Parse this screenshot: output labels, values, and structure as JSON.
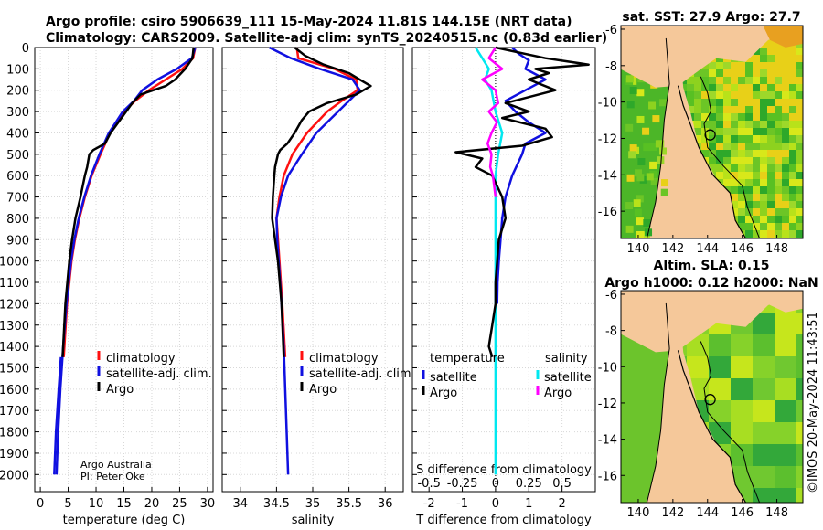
{
  "header": {
    "line1": "Argo profile: csiro 5906639_111 15-May-2024 11.81S 144.15E (NRT data)",
    "line2": "Climatology: CARS2009. Satellite-adj clim: synTS_20240515.nc (0.83d earlier)"
  },
  "credit": {
    "org": "Argo Australia",
    "pi": "PI: Peter Oke"
  },
  "timestamp": "©IMOS 20-May-2024 11:43:51",
  "colors": {
    "climatology": "#ff1010",
    "satellite": "#1010e0",
    "argo": "#000000",
    "sal_satellite": "#00e8f0",
    "sal_argo": "#ff00ff",
    "land": "#f5c89a"
  },
  "chart_data": [
    {
      "id": "temperature",
      "type": "line",
      "xlabel": "temperature (deg C)",
      "ylabel": "",
      "xlim": [
        -1,
        31
      ],
      "ylim": [
        0,
        2080
      ],
      "xticks": [
        "0",
        "5",
        "10",
        "15",
        "20",
        "25",
        "30"
      ],
      "yticks": [
        "0",
        "100",
        "200",
        "300",
        "400",
        "500",
        "600",
        "700",
        "800",
        "900",
        "1000",
        "1100",
        "1200",
        "1300",
        "1400",
        "1500",
        "1600",
        "1700",
        "1800",
        "1900",
        "2000"
      ],
      "legend": [
        "climatology",
        "satellite-adj. clim.",
        "Argo"
      ],
      "series": [
        {
          "name": "climatology",
          "depth": [
            0,
            50,
            100,
            150,
            200,
            250,
            300,
            400,
            500,
            600,
            700,
            800,
            900,
            1000,
            1200,
            1450
          ],
          "values": [
            27.8,
            27.4,
            25.5,
            22.5,
            19.5,
            17.0,
            15.0,
            12.5,
            10.8,
            9.2,
            8.0,
            7.0,
            6.2,
            5.6,
            4.8,
            4.2
          ]
        },
        {
          "name": "satellite-adj. clim.",
          "depth": [
            0,
            50,
            100,
            150,
            200,
            250,
            300,
            400,
            500,
            600,
            700,
            800,
            900,
            1000,
            1200,
            1400,
            1600,
            1800,
            2000
          ],
          "values": [
            27.8,
            27.2,
            24.5,
            21.0,
            18.3,
            16.8,
            14.8,
            12.3,
            10.6,
            9.1,
            7.9,
            6.9,
            6.1,
            5.5,
            4.7,
            4.1,
            3.6,
            3.2,
            2.9
          ]
        },
        {
          "name": "Argo",
          "depth": [
            0,
            50,
            100,
            150,
            180,
            220,
            260,
            300,
            400,
            450,
            480,
            500,
            560,
            600,
            700,
            800,
            900,
            1000,
            1200,
            1450
          ],
          "values": [
            27.5,
            27.3,
            26.0,
            24.2,
            22.5,
            18.0,
            16.5,
            15.4,
            12.6,
            11.6,
            9.5,
            8.8,
            8.4,
            8.0,
            7.2,
            6.3,
            5.7,
            5.2,
            4.5,
            4.0
          ]
        },
        {
          "name": "Argo deep",
          "depth": [
            1450,
            1600,
            1800,
            2000
          ],
          "values": [
            3.7,
            3.3,
            2.8,
            2.5
          ]
        }
      ]
    },
    {
      "id": "salinity",
      "type": "line",
      "xlabel": "salinity",
      "xlim": [
        33.75,
        36.25
      ],
      "ylim": [
        0,
        2080
      ],
      "xticks": [
        "34",
        "34.5",
        "35",
        "35.5",
        "36"
      ],
      "legend": [
        "climatology",
        "satellite-adj. clim.",
        "Argo"
      ],
      "series": [
        {
          "name": "climatology",
          "depth": [
            0,
            50,
            100,
            150,
            200,
            250,
            300,
            400,
            500,
            600,
            700,
            800,
            900,
            1000,
            1200,
            1450
          ],
          "values": [
            34.78,
            34.8,
            35.3,
            35.6,
            35.62,
            35.4,
            35.2,
            34.92,
            34.72,
            34.6,
            34.54,
            34.5,
            34.52,
            34.54,
            34.58,
            34.62
          ]
        },
        {
          "name": "satellite-adj. clim.",
          "depth": [
            0,
            50,
            100,
            150,
            200,
            250,
            300,
            400,
            500,
            600,
            700,
            800,
            900,
            1000,
            1200,
            1400,
            1600,
            1800,
            2000
          ],
          "values": [
            34.4,
            34.7,
            35.1,
            35.55,
            35.65,
            35.5,
            35.35,
            35.05,
            34.85,
            34.66,
            34.56,
            34.5,
            34.51,
            34.53,
            34.57,
            34.6,
            34.62,
            34.64,
            34.66
          ]
        },
        {
          "name": "Argo",
          "depth": [
            0,
            40,
            80,
            120,
            160,
            180,
            220,
            260,
            300,
            340,
            400,
            450,
            480,
            500,
            560,
            600,
            700,
            800,
            900,
            1000,
            1200,
            1450
          ],
          "values": [
            34.75,
            34.9,
            35.15,
            35.5,
            35.7,
            35.8,
            35.6,
            35.2,
            34.95,
            34.85,
            34.75,
            34.65,
            34.55,
            34.52,
            34.48,
            34.47,
            34.45,
            34.44,
            34.48,
            34.52,
            34.57,
            34.6
          ]
        }
      ]
    },
    {
      "id": "difference",
      "type": "line",
      "xlabel": "T difference from climatology",
      "xlabel_top": "S difference from climatology",
      "xlim": [
        -2.5,
        3.0
      ],
      "ylim": [
        0,
        2080
      ],
      "xticks": [
        "-2",
        "-1",
        "0",
        "1",
        "2"
      ],
      "xticks_top": [
        "-0.5",
        "-0.25",
        "0",
        "0.25",
        "0.5"
      ],
      "legend_headers": [
        "temperature",
        "salinity"
      ],
      "legend": [
        "satellite",
        "Argo",
        "satellite",
        "Argo"
      ],
      "series": [
        {
          "name": "T satellite",
          "depth": [
            0,
            30,
            60,
            100,
            150,
            200,
            250,
            300,
            350,
            400,
            450,
            500,
            600,
            700,
            800,
            900,
            1000,
            1100,
            1200
          ],
          "values": [
            0.5,
            0.7,
            1.0,
            0.9,
            1.5,
            0.9,
            0.3,
            0.6,
            1.0,
            1.5,
            0.9,
            0.8,
            0.5,
            0.3,
            0.2,
            0.15,
            0.1,
            0.06,
            0.05
          ]
        },
        {
          "name": "T Argo",
          "depth": [
            0,
            50,
            80,
            100,
            120,
            150,
            200,
            260,
            300,
            330,
            380,
            420,
            460,
            490,
            520,
            560,
            600,
            700,
            800,
            900,
            1000,
            1100,
            1200,
            1300,
            1400,
            1450
          ],
          "values": [
            0.0,
            1.5,
            2.8,
            1.2,
            1.6,
            1.0,
            1.8,
            0.3,
            1.0,
            0.2,
            1.5,
            1.7,
            0.8,
            -1.2,
            -0.4,
            -0.6,
            -0.1,
            0.2,
            0.3,
            0.1,
            0.05,
            0.0,
            0.0,
            -0.1,
            -0.2,
            -0.1
          ]
        },
        {
          "name": "S satellite",
          "depth": [
            0,
            50,
            100,
            150,
            200,
            300,
            400,
            500,
            600,
            800,
            1000,
            1200,
            1400,
            1600,
            1800,
            2000
          ],
          "values": [
            -0.15,
            -0.1,
            -0.05,
            -0.08,
            -0.03,
            0.0,
            0.05,
            0.02,
            0.0,
            0.0,
            0.0,
            0.0,
            0.0,
            0.0,
            0.0,
            0.0
          ]
        },
        {
          "name": "S Argo",
          "depth": [
            0,
            50,
            100,
            150,
            200,
            260,
            300,
            350,
            400,
            450,
            500,
            560,
            600,
            700
          ],
          "values": [
            0.0,
            -0.05,
            0.05,
            -0.1,
            0.0,
            0.02,
            -0.05,
            0.01,
            -0.03,
            -0.06,
            -0.03,
            -0.04,
            -0.02,
            0.0
          ]
        }
      ]
    },
    {
      "id": "sst_map",
      "type": "heatmap",
      "title": "sat. SST: 27.9 Argo: 27.7",
      "xticks": [
        "140",
        "142",
        "144",
        "146",
        "148"
      ],
      "yticks": [
        "-6",
        "-8",
        "-10",
        "-12",
        "-14",
        "-16"
      ],
      "xlim": [
        139,
        149.5
      ],
      "ylim": [
        -17.5,
        -5.8
      ],
      "marker": [
        144.15,
        -11.81
      ]
    },
    {
      "id": "sla_map",
      "type": "heatmap",
      "title_line1": "Altim. SLA: 0.15",
      "title_line2": "Argo h1000: 0.12 h2000: NaN",
      "xticks": [
        "140",
        "142",
        "144",
        "146",
        "148"
      ],
      "yticks": [
        "-6",
        "-8",
        "-10",
        "-12",
        "-14",
        "-16"
      ],
      "xlim": [
        139,
        149.5
      ],
      "ylim": [
        -17.5,
        -5.8
      ],
      "marker": [
        144.15,
        -11.81
      ]
    }
  ]
}
